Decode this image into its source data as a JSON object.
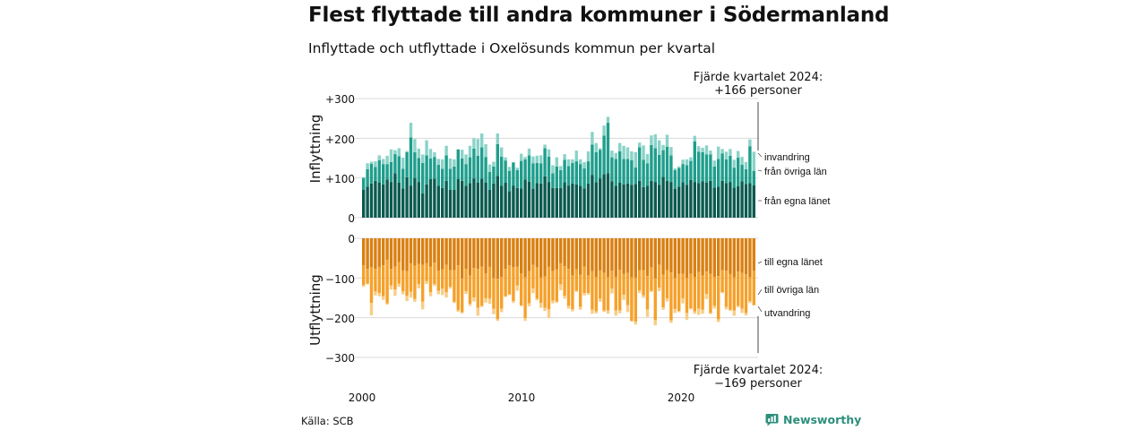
{
  "header": {
    "title": "Flest flyttade till andra kommuner i Södermanland",
    "subtitle": "Inflyttade och utflyttade i Oxelösunds kommun per kvartal"
  },
  "footer": {
    "source": "Källa: SCB",
    "brand": "Newsworthy"
  },
  "colors": {
    "in_same": "#0b5a4f",
    "in_other": "#1f9e8c",
    "in_immig": "#8ad3c8",
    "out_same": "#d98012",
    "out_other": "#f5a12a",
    "out_emig": "#f8cd87",
    "grid": "#d9d9d9"
  },
  "chart_data": [
    {
      "type": "bar",
      "stacked": true,
      "ylabel": "Inflyttning",
      "ylim": [
        0,
        300
      ],
      "yticks": [
        0,
        100,
        200,
        300
      ],
      "ytick_labels": [
        "0",
        "+100",
        "+200",
        "+300"
      ],
      "x_start": "2000 Q1",
      "x_end": "2024 Q4",
      "xticks": [
        2000,
        2010,
        2020
      ],
      "series": [
        {
          "name": "från egna länet",
          "values": [
            70,
            78,
            86,
            93,
            88,
            84,
            96,
            90,
            112,
            88,
            74,
            102,
            81,
            100,
            90,
            61,
            84,
            97,
            98,
            80,
            75,
            93,
            70,
            70,
            97,
            93,
            80,
            87,
            99,
            88,
            98,
            88,
            70,
            86,
            105,
            80,
            88,
            67,
            81,
            75,
            74,
            96,
            91,
            73,
            87,
            86,
            104,
            90,
            75,
            75,
            75,
            89,
            81,
            86,
            84,
            80,
            74,
            86,
            108,
            89,
            99,
            110,
            112,
            92,
            80,
            88,
            84,
            86,
            83,
            85,
            93,
            77,
            80,
            93,
            90,
            83,
            103,
            93,
            90,
            73,
            78,
            89,
            83,
            95,
            90,
            87,
            92,
            88,
            93,
            76,
            78,
            93,
            87,
            90,
            76,
            79,
            92,
            85,
            87,
            82
          ]
        },
        {
          "name": "från övriga län",
          "values": [
            30,
            44,
            50,
            35,
            57,
            51,
            39,
            50,
            48,
            67,
            49,
            63,
            121,
            65,
            60,
            77,
            73,
            52,
            55,
            53,
            48,
            64,
            53,
            59,
            75,
            56,
            55,
            65,
            75,
            68,
            79,
            65,
            45,
            43,
            80,
            74,
            56,
            51,
            58,
            45,
            69,
            51,
            66,
            64,
            51,
            51,
            71,
            64,
            37,
            54,
            45,
            57,
            49,
            52,
            58,
            55,
            50,
            56,
            76,
            76,
            72,
            97,
            127,
            60,
            68,
            79,
            64,
            62,
            62,
            42,
            84,
            69,
            57,
            90,
            85,
            75,
            67,
            86,
            67,
            47,
            47,
            46,
            49,
            48,
            102,
            79,
            73,
            71,
            66,
            53,
            70,
            69,
            60,
            66,
            50,
            72,
            41,
            37,
            93,
            36
          ]
        },
        {
          "name": "invandring",
          "values": [
            2,
            15,
            5,
            14,
            12,
            13,
            21,
            32,
            10,
            20,
            28,
            3,
            37,
            33,
            24,
            21,
            38,
            24,
            12,
            15,
            24,
            24,
            26,
            18,
            0,
            22,
            24,
            29,
            26,
            42,
            35,
            32,
            19,
            12,
            27,
            23,
            8,
            10,
            1,
            6,
            18,
            6,
            17,
            17,
            18,
            20,
            9,
            18,
            20,
            23,
            10,
            14,
            17,
            9,
            27,
            12,
            16,
            25,
            32,
            23,
            4,
            25,
            15,
            17,
            15,
            21,
            33,
            29,
            22,
            38,
            12,
            36,
            23,
            24,
            35,
            37,
            13,
            30,
            21,
            4,
            4,
            11,
            15,
            9,
            14,
            14,
            11,
            23,
            10,
            15,
            31,
            11,
            19,
            17,
            20,
            17,
            20,
            18,
            17,
            48
          ]
        }
      ]
    },
    {
      "type": "bar",
      "stacked": true,
      "ylabel": "Utflyttning",
      "ylim": [
        -300,
        0
      ],
      "yticks": [
        0,
        -100,
        -200,
        -300
      ],
      "ytick_labels": [
        "0",
        "−100",
        "−200",
        "−300"
      ],
      "x_start": "2000 Q1",
      "x_end": "2024 Q4",
      "xticks": [
        2000,
        2010,
        2020
      ],
      "series": [
        {
          "name": "till egna länet",
          "values": [
            -68,
            -77,
            -73,
            -77,
            -72,
            -68,
            -54,
            -77,
            -71,
            -60,
            -81,
            -83,
            -63,
            -69,
            -65,
            -67,
            -62,
            -71,
            -61,
            -82,
            -78,
            -67,
            -80,
            -80,
            -68,
            -101,
            -77,
            -94,
            -75,
            -77,
            -71,
            -88,
            -72,
            -100,
            -102,
            -97,
            -77,
            -68,
            -73,
            -71,
            -88,
            -98,
            -83,
            -67,
            -73,
            -99,
            -96,
            -72,
            -83,
            -78,
            -63,
            -70,
            -77,
            -94,
            -78,
            -92,
            -71,
            -94,
            -83,
            -97,
            -81,
            -87,
            -98,
            -82,
            -97,
            -79,
            -90,
            -87,
            -98,
            -99,
            -80,
            -80,
            -95,
            -73,
            -101,
            -67,
            -92,
            -80,
            -86,
            -100,
            -90,
            -89,
            -100,
            -89,
            -97,
            -85,
            -94,
            -84,
            -89,
            -97,
            -95,
            -80,
            -82,
            -90,
            -98,
            -84,
            -87,
            -91,
            -98,
            -82
          ]
        },
        {
          "name": "till övriga län",
          "values": [
            -50,
            -37,
            -90,
            -57,
            -66,
            -78,
            -110,
            -42,
            -58,
            -54,
            -52,
            -62,
            -72,
            -84,
            -50,
            -92,
            -46,
            -65,
            -54,
            -50,
            -49,
            -69,
            -42,
            -80,
            -113,
            -85,
            -56,
            -71,
            -74,
            -98,
            -99,
            -63,
            -80,
            -77,
            -101,
            -80,
            -69,
            -73,
            -85,
            -48,
            -81,
            -103,
            -81,
            -59,
            -79,
            -64,
            -79,
            -107,
            -74,
            -81,
            -53,
            -75,
            -93,
            -85,
            -54,
            -81,
            -67,
            -44,
            -97,
            -87,
            -71,
            -95,
            -84,
            -45,
            -85,
            -103,
            -52,
            -81,
            -110,
            -111,
            -51,
            -64,
            -84,
            -59,
            -105,
            -57,
            -82,
            -71,
            -121,
            -78,
            -93,
            -62,
            -88,
            -87,
            -87,
            -92,
            -86,
            -56,
            -99,
            -73,
            -109,
            -56,
            -91,
            -90,
            -84,
            -86,
            -90,
            -97,
            -60,
            -86
          ]
        },
        {
          "name": "utvandring",
          "values": [
            -4,
            -2,
            -31,
            -10,
            -8,
            -9,
            -3,
            -10,
            -16,
            -8,
            -8,
            -13,
            -14,
            -7,
            -11,
            -20,
            -7,
            -10,
            -5,
            -9,
            -16,
            -13,
            -5,
            -3,
            -4,
            -3,
            -7,
            -5,
            -10,
            -20,
            -3,
            -11,
            -13,
            -14,
            -5,
            -9,
            -2,
            -2,
            -5,
            -13,
            -2,
            -7,
            -7,
            -12,
            -4,
            -12,
            -8,
            -22,
            -7,
            -3,
            -15,
            -7,
            -7,
            -5,
            -3,
            -7,
            -6,
            -4,
            -10,
            -5,
            -8,
            -3,
            -8,
            -12,
            -13,
            -7,
            -13,
            -18,
            -2,
            -7,
            -7,
            -6,
            -19,
            -3,
            -13,
            -9,
            -6,
            -8,
            -6,
            -10,
            -3,
            -13,
            -17,
            -3,
            -6,
            -16,
            -10,
            -13,
            -3,
            -7,
            -7,
            -2,
            -6,
            -3,
            -13,
            -4,
            -11,
            -6,
            -5,
            -1
          ]
        }
      ]
    }
  ],
  "annotations": {
    "top_line1": "Fjärde kvartalet 2024:",
    "top_line2": "+166 personer",
    "bottom_line1": "Fjärde kvartalet 2024:",
    "bottom_line2": "−169 personer"
  }
}
